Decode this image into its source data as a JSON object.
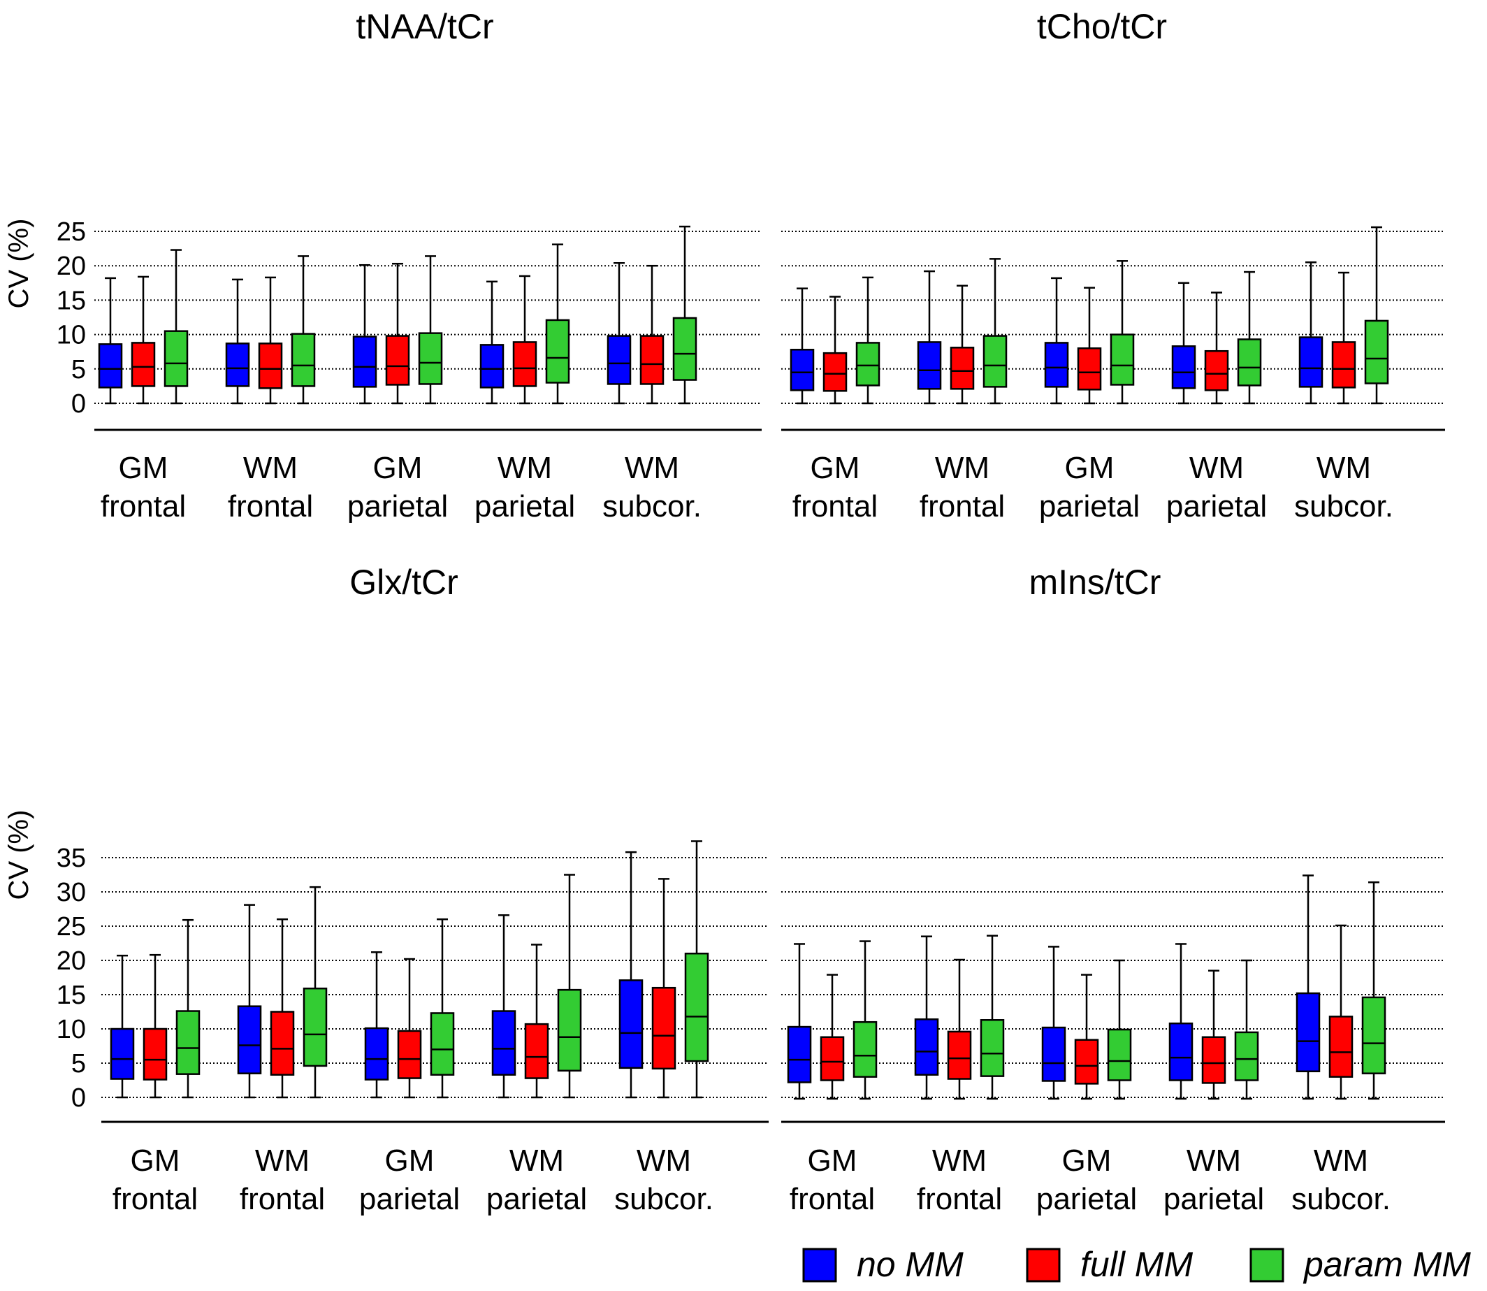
{
  "legend": [
    {
      "name": "no MM",
      "color": "#0000ff"
    },
    {
      "name": "full MM",
      "color": "#ff0000"
    },
    {
      "name": "param MM",
      "color": "#33cc33"
    }
  ],
  "chart_data": [
    {
      "type": "boxplot",
      "title": "tNAA/tCr",
      "ylabel": "CV (%)",
      "ylim": [
        0,
        25
      ],
      "yticks": [
        0,
        5,
        10,
        15,
        20,
        25
      ],
      "categories": [
        [
          "GM",
          "frontal"
        ],
        [
          "WM",
          "frontal"
        ],
        [
          "GM",
          "parietal"
        ],
        [
          "WM",
          "parietal"
        ],
        [
          "WM",
          "subcor."
        ]
      ],
      "series": [
        {
          "name": "no MM",
          "boxes": [
            {
              "min": 0,
              "q1": 2.3,
              "median": 5.0,
              "q3": 8.6,
              "max": 18.2
            },
            {
              "min": 0,
              "q1": 2.5,
              "median": 5.1,
              "q3": 8.7,
              "max": 18.0
            },
            {
              "min": 0,
              "q1": 2.4,
              "median": 5.3,
              "q3": 9.7,
              "max": 20.1
            },
            {
              "min": 0,
              "q1": 2.3,
              "median": 5.0,
              "q3": 8.5,
              "max": 17.7
            },
            {
              "min": 0,
              "q1": 2.8,
              "median": 5.8,
              "q3": 9.8,
              "max": 20.4
            }
          ]
        },
        {
          "name": "full MM",
          "boxes": [
            {
              "min": 0,
              "q1": 2.5,
              "median": 5.3,
              "q3": 8.8,
              "max": 18.4
            },
            {
              "min": 0,
              "q1": 2.2,
              "median": 5.0,
              "q3": 8.7,
              "max": 18.3
            },
            {
              "min": 0,
              "q1": 2.7,
              "median": 5.4,
              "q3": 9.8,
              "max": 20.3
            },
            {
              "min": 0,
              "q1": 2.5,
              "median": 5.1,
              "q3": 8.9,
              "max": 18.5
            },
            {
              "min": 0,
              "q1": 2.8,
              "median": 5.7,
              "q3": 9.8,
              "max": 20.0
            }
          ]
        },
        {
          "name": "param MM",
          "boxes": [
            {
              "min": 0,
              "q1": 2.5,
              "median": 5.8,
              "q3": 10.5,
              "max": 22.3
            },
            {
              "min": 0,
              "q1": 2.5,
              "median": 5.5,
              "q3": 10.1,
              "max": 21.4
            },
            {
              "min": 0,
              "q1": 2.8,
              "median": 5.9,
              "q3": 10.2,
              "max": 21.4
            },
            {
              "min": 0,
              "q1": 3.0,
              "median": 6.6,
              "q3": 12.1,
              "max": 23.1
            },
            {
              "min": 0,
              "q1": 3.4,
              "median": 7.2,
              "q3": 12.4,
              "max": 25.7
            }
          ]
        }
      ]
    },
    {
      "type": "boxplot",
      "title": "tCho/tCr",
      "ylabel": "",
      "ylim": [
        0,
        25
      ],
      "yticks": [],
      "categories": [
        [
          "GM",
          "frontal"
        ],
        [
          "WM",
          "frontal"
        ],
        [
          "GM",
          "parietal"
        ],
        [
          "WM",
          "parietal"
        ],
        [
          "WM",
          "subcor."
        ]
      ],
      "series": [
        {
          "name": "no MM",
          "boxes": [
            {
              "min": 0,
              "q1": 1.9,
              "median": 4.5,
              "q3": 7.8,
              "max": 16.7
            },
            {
              "min": 0,
              "q1": 2.1,
              "median": 4.8,
              "q3": 8.9,
              "max": 19.2
            },
            {
              "min": 0,
              "q1": 2.4,
              "median": 5.2,
              "q3": 8.8,
              "max": 18.2
            },
            {
              "min": 0,
              "q1": 2.2,
              "median": 4.5,
              "q3": 8.3,
              "max": 17.5
            },
            {
              "min": 0,
              "q1": 2.4,
              "median": 5.1,
              "q3": 9.6,
              "max": 20.5
            }
          ]
        },
        {
          "name": "full MM",
          "boxes": [
            {
              "min": 0,
              "q1": 1.8,
              "median": 4.3,
              "q3": 7.3,
              "max": 15.5
            },
            {
              "min": 0,
              "q1": 2.1,
              "median": 4.7,
              "q3": 8.1,
              "max": 17.1
            },
            {
              "min": 0,
              "q1": 2.0,
              "median": 4.5,
              "q3": 8.0,
              "max": 16.8
            },
            {
              "min": 0,
              "q1": 1.9,
              "median": 4.3,
              "q3": 7.6,
              "max": 16.1
            },
            {
              "min": 0,
              "q1": 2.3,
              "median": 5.0,
              "q3": 8.9,
              "max": 19.0
            }
          ]
        },
        {
          "name": "param MM",
          "boxes": [
            {
              "min": 0,
              "q1": 2.6,
              "median": 5.5,
              "q3": 8.8,
              "max": 18.3
            },
            {
              "min": 0,
              "q1": 2.4,
              "median": 5.5,
              "q3": 9.8,
              "max": 21.0
            },
            {
              "min": 0,
              "q1": 2.7,
              "median": 5.5,
              "q3": 10.0,
              "max": 20.7
            },
            {
              "min": 0,
              "q1": 2.6,
              "median": 5.2,
              "q3": 9.3,
              "max": 19.1
            },
            {
              "min": 0,
              "q1": 2.9,
              "median": 6.5,
              "q3": 12.0,
              "max": 25.6
            }
          ]
        }
      ]
    },
    {
      "type": "boxplot",
      "title": "Glx/tCr",
      "ylabel": "CV (%)",
      "ylim": [
        0,
        35
      ],
      "yticks": [
        0,
        5,
        10,
        15,
        20,
        25,
        30,
        35
      ],
      "categories": [
        [
          "GM",
          "frontal"
        ],
        [
          "WM",
          "frontal"
        ],
        [
          "GM",
          "parietal"
        ],
        [
          "WM",
          "parietal"
        ],
        [
          "WM",
          "subcor."
        ]
      ],
      "series": [
        {
          "name": "no MM",
          "boxes": [
            {
              "min": 0,
              "q1": 2.7,
              "median": 5.6,
              "q3": 10.0,
              "max": 20.7
            },
            {
              "min": 0,
              "q1": 3.5,
              "median": 7.6,
              "q3": 13.3,
              "max": 28.1
            },
            {
              "min": 0,
              "q1": 2.6,
              "median": 5.6,
              "q3": 10.1,
              "max": 21.2
            },
            {
              "min": 0,
              "q1": 3.3,
              "median": 7.1,
              "q3": 12.6,
              "max": 26.6
            },
            {
              "min": 0,
              "q1": 4.3,
              "median": 9.4,
              "q3": 17.1,
              "max": 35.8
            }
          ]
        },
        {
          "name": "full MM",
          "boxes": [
            {
              "min": 0,
              "q1": 2.6,
              "median": 5.5,
              "q3": 10.0,
              "max": 20.8
            },
            {
              "min": 0,
              "q1": 3.3,
              "median": 7.1,
              "q3": 12.5,
              "max": 26.0
            },
            {
              "min": 0,
              "q1": 2.8,
              "median": 5.6,
              "q3": 9.7,
              "max": 20.2
            },
            {
              "min": 0,
              "q1": 2.8,
              "median": 5.9,
              "q3": 10.7,
              "max": 22.3
            },
            {
              "min": 0,
              "q1": 4.2,
              "median": 9.0,
              "q3": 16.0,
              "max": 31.9
            }
          ]
        },
        {
          "name": "param MM",
          "boxes": [
            {
              "min": 0,
              "q1": 3.4,
              "median": 7.2,
              "q3": 12.6,
              "max": 25.9
            },
            {
              "min": 0,
              "q1": 4.6,
              "median": 9.2,
              "q3": 15.9,
              "max": 30.7
            },
            {
              "min": 0,
              "q1": 3.3,
              "median": 7.0,
              "q3": 12.3,
              "max": 26.0
            },
            {
              "min": 0,
              "q1": 3.9,
              "median": 8.8,
              "q3": 15.7,
              "max": 32.5
            },
            {
              "min": 0,
              "q1": 5.3,
              "median": 11.8,
              "q3": 21.0,
              "max": 37.4
            }
          ]
        }
      ]
    },
    {
      "type": "boxplot",
      "title": "mIns/tCr",
      "ylabel": "",
      "ylim": [
        0,
        35
      ],
      "yticks": [],
      "categories": [
        [
          "GM",
          "frontal"
        ],
        [
          "WM",
          "frontal"
        ],
        [
          "GM",
          "parietal"
        ],
        [
          "WM",
          "parietal"
        ],
        [
          "WM",
          "subcor."
        ]
      ],
      "series": [
        {
          "name": "no MM",
          "boxes": [
            {
              "min": -0.2,
              "q1": 2.2,
              "median": 5.5,
              "q3": 10.3,
              "max": 22.4
            },
            {
              "min": -0.2,
              "q1": 3.3,
              "median": 6.7,
              "q3": 11.4,
              "max": 23.5
            },
            {
              "min": -0.2,
              "q1": 2.4,
              "median": 5.0,
              "q3": 10.2,
              "max": 22.0
            },
            {
              "min": -0.2,
              "q1": 2.5,
              "median": 5.8,
              "q3": 10.8,
              "max": 22.4
            },
            {
              "min": -0.2,
              "q1": 3.8,
              "median": 8.2,
              "q3": 15.2,
              "max": 32.4
            }
          ]
        },
        {
          "name": "full MM",
          "boxes": [
            {
              "min": -0.2,
              "q1": 2.5,
              "median": 5.2,
              "q3": 8.8,
              "max": 17.9
            },
            {
              "min": -0.2,
              "q1": 2.7,
              "median": 5.7,
              "q3": 9.6,
              "max": 20.1
            },
            {
              "min": -0.2,
              "q1": 2.0,
              "median": 4.6,
              "q3": 8.4,
              "max": 17.9
            },
            {
              "min": -0.2,
              "q1": 2.1,
              "median": 5.0,
              "q3": 8.8,
              "max": 18.5
            },
            {
              "min": -0.2,
              "q1": 3.0,
              "median": 6.6,
              "q3": 11.8,
              "max": 25.1
            }
          ]
        },
        {
          "name": "param MM",
          "boxes": [
            {
              "min": -0.2,
              "q1": 3.0,
              "median": 6.1,
              "q3": 11.0,
              "max": 22.8
            },
            {
              "min": -0.2,
              "q1": 3.1,
              "median": 6.4,
              "q3": 11.3,
              "max": 23.6
            },
            {
              "min": -0.2,
              "q1": 2.5,
              "median": 5.3,
              "q3": 9.9,
              "max": 20.0
            },
            {
              "min": -0.2,
              "q1": 2.5,
              "median": 5.6,
              "q3": 9.5,
              "max": 20.0
            },
            {
              "min": -0.2,
              "q1": 3.5,
              "median": 7.9,
              "q3": 14.6,
              "max": 31.4
            }
          ]
        }
      ]
    }
  ]
}
